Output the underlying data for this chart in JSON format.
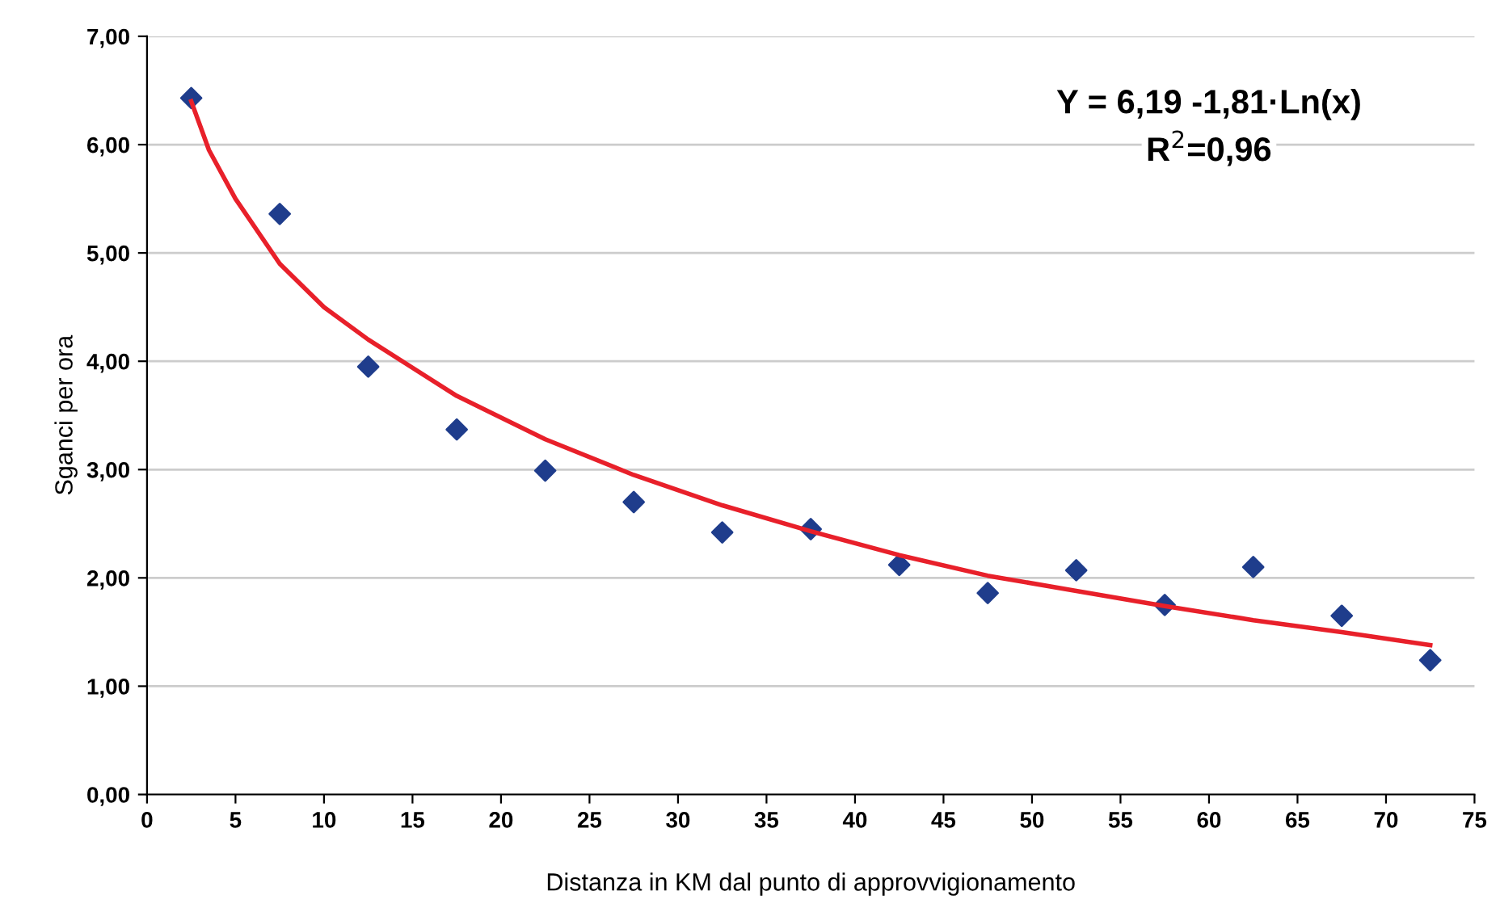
{
  "chart_data": {
    "type": "scatter",
    "xlabel": "Distanza in KM dal punto di approvvigionamento",
    "ylabel": "Sganci per ora",
    "x": [
      2.5,
      7.5,
      12.5,
      17.5,
      22.5,
      27.5,
      32.5,
      37.5,
      42.5,
      47.5,
      52.5,
      57.5,
      62.5,
      67.5,
      72.5
    ],
    "series": [
      {
        "color": "#1f3d8c",
        "marker": "diamond",
        "values": [
          6.43,
          5.36,
          3.95,
          3.37,
          2.99,
          2.7,
          2.42,
          2.45,
          2.12,
          1.86,
          2.07,
          1.75,
          2.1,
          1.65,
          1.24
        ]
      },
      {
        "type": "line",
        "color": "#e8202a",
        "marker": "none",
        "line_style": "solid",
        "x": [
          2.5,
          3.5,
          5,
          7.5,
          10,
          12.5,
          17.5,
          22.5,
          27.5,
          32.5,
          37.5,
          42.5,
          47.5,
          52.5,
          57.5,
          62.5,
          67.5,
          72.5
        ],
        "values": [
          6.4,
          5.95,
          5.5,
          4.9,
          4.5,
          4.2,
          3.68,
          3.28,
          2.95,
          2.67,
          2.43,
          2.21,
          2.02,
          1.88,
          1.74,
          1.61,
          1.5,
          1.38
        ]
      }
    ],
    "xlim": [
      0,
      75
    ],
    "xticks": [
      0,
      5,
      10,
      15,
      20,
      25,
      30,
      35,
      40,
      45,
      50,
      55,
      60,
      65,
      70,
      75
    ],
    "ylim": [
      0,
      7
    ],
    "yticks": [
      {
        "value": 0,
        "label": "0,00"
      },
      {
        "value": 1,
        "label": "1,00"
      },
      {
        "value": 2,
        "label": "2,00"
      },
      {
        "value": 3,
        "label": "3,00"
      },
      {
        "value": 4,
        "label": "4,00"
      },
      {
        "value": 5,
        "label": "5,00"
      },
      {
        "value": 6,
        "label": "6,00"
      },
      {
        "value": 7,
        "label": "7,00"
      }
    ],
    "grid": "y",
    "annotations": [
      "Y = 6,19 -1,81·Ln(x)",
      "R$^{2}$=0,96"
    ]
  }
}
